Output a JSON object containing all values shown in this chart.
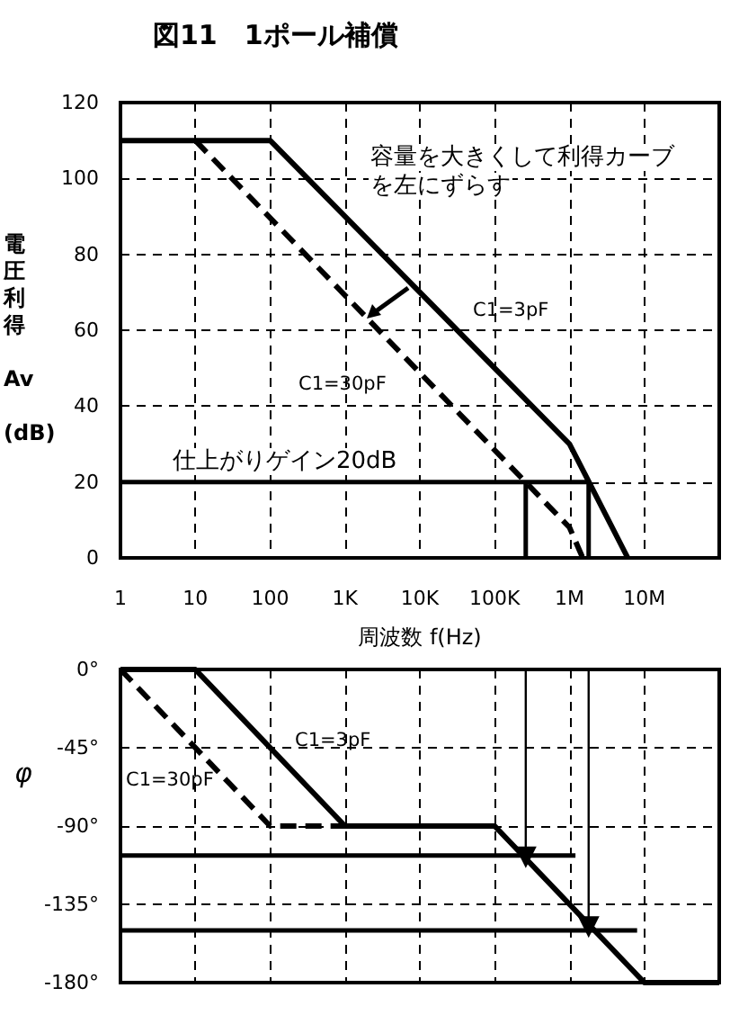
{
  "chart_data": [
    {
      "type": "line",
      "title": "図11　1ポール補償",
      "xlabel": "周波数 f(Hz)",
      "ylabel": "電圧利得 Av (dB)",
      "log": "x",
      "grid": true,
      "legend": false,
      "marker": "none",
      "xlim": [
        1,
        100000000
      ],
      "xticks": [
        {
          "value": 1,
          "label": "1"
        },
        {
          "value": 10,
          "label": "10"
        },
        {
          "value": 100,
          "label": "100"
        },
        {
          "value": 1000,
          "label": "1K"
        },
        {
          "value": 10000,
          "label": "10K"
        },
        {
          "value": 100000,
          "label": "100K"
        },
        {
          "value": 1000000,
          "label": "1M"
        },
        {
          "value": 10000000,
          "label": "10M"
        }
      ],
      "ylim": [
        0,
        120
      ],
      "yticks": [
        0,
        20,
        40,
        60,
        80,
        100,
        120
      ],
      "annotations": [
        "容量を大きくして利得カーブ",
        "を左にずらす",
        "仕上がりゲイン20dB"
      ],
      "series": [
        {
          "name": "C1=3pF",
          "color": "#000000",
          "line_style": "solid",
          "x": [
            1,
            100,
            1000000,
            6000000
          ],
          "values": [
            110,
            110,
            30,
            0
          ]
        },
        {
          "name": "C1=30pF",
          "color": "#000000",
          "line_style": "dashed",
          "x": [
            10,
            1000000,
            1500000
          ],
          "values": [
            110,
            8,
            0
          ]
        },
        {
          "color": "#000000",
          "line_style": "solid",
          "x": [
            1,
            1800000
          ],
          "values": [
            20,
            20
          ]
        },
        {
          "color": "#000000",
          "line_style": "solid",
          "x": [
            260000,
            260000
          ],
          "values": [
            20,
            0
          ]
        },
        {
          "color": "#000000",
          "line_style": "solid",
          "x": [
            1800000,
            1800000
          ],
          "values": [
            20,
            0
          ]
        }
      ]
    },
    {
      "type": "line",
      "ylabel": "φ",
      "log": "x",
      "grid": true,
      "legend": false,
      "marker": "none",
      "tick_labels": "y",
      "xlim": [
        1,
        100000000
      ],
      "ylim": [
        -180,
        0
      ],
      "yticks": [
        {
          "value": 0,
          "label": "0°"
        },
        {
          "value": -45,
          "label": "-45°"
        },
        {
          "value": -90,
          "label": "-90°"
        },
        {
          "value": -135,
          "label": "-135°"
        },
        {
          "value": -180,
          "label": "-180°"
        }
      ],
      "series": [
        {
          "name": "C1=3pF",
          "color": "#000000",
          "line_style": "solid",
          "x": [
            1,
            10,
            1000,
            100000,
            10000000,
            100000000
          ],
          "values": [
            0,
            0,
            -90,
            -90,
            -180,
            -180
          ]
        },
        {
          "name": "C1=30pF",
          "color": "#000000",
          "line_style": "dashed",
          "x": [
            1,
            100,
            1000
          ],
          "values": [
            0,
            -90,
            -90
          ]
        },
        {
          "color": "#000000",
          "line_style": "solid",
          "x": [
            1,
            1200000
          ],
          "values": [
            -107,
            -107
          ]
        },
        {
          "color": "#000000",
          "line_style": "solid",
          "x": [
            1,
            8000000
          ],
          "values": [
            -150,
            -150
          ]
        },
        {
          "color": "#000000",
          "line_style": "solid",
          "marker": "triangle",
          "x": [
            260000,
            260000
          ],
          "values": [
            0,
            -108
          ]
        },
        {
          "color": "#000000",
          "line_style": "solid",
          "marker": "triangle",
          "x": [
            1800000,
            1800000
          ],
          "values": [
            0,
            -148
          ]
        }
      ]
    }
  ]
}
